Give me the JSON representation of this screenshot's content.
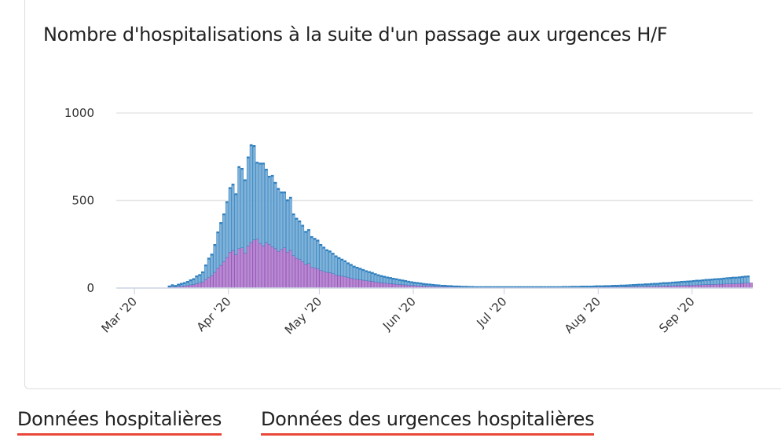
{
  "chart_data": {
    "type": "bar",
    "title": "Nombre d'hospitalisations à la suite d'un passage aux urgences H/F",
    "stacked": true,
    "grid": true,
    "legend": "none",
    "ylim": [
      0,
      1000
    ],
    "yticks": [
      0,
      500,
      1000
    ],
    "xticks": [
      "Mar '20",
      "Apr '20",
      "May '20",
      "Jun '20",
      "Jul '20",
      "Aug '20",
      "Sep '20"
    ],
    "x_start": "2020-02-24",
    "x_end": "2020-09-20",
    "colors": {
      "top": "#7fb2d8",
      "top_edge": "#2f7fbf",
      "bottom": "#b98ad3",
      "bottom_edge": "#8a47b0",
      "grid": "#e6e6e6"
    },
    "series": [
      {
        "values": [
          0,
          0,
          0,
          0,
          0,
          0,
          0,
          0,
          0,
          0,
          0,
          0,
          0,
          0,
          0,
          0,
          0,
          5,
          8,
          6,
          9,
          10,
          12,
          14,
          18,
          20,
          25,
          28,
          34,
          48,
          62,
          70,
          90,
          112,
          130,
          150,
          175,
          205,
          215,
          190,
          225,
          230,
          200,
          240,
          260,
          275,
          280,
          255,
          240,
          260,
          250,
          235,
          225,
          210,
          220,
          230,
          205,
          215,
          185,
          170,
          165,
          150,
          135,
          140,
          120,
          115,
          110,
          100,
          95,
          90,
          88,
          82,
          75,
          70,
          68,
          65,
          60,
          56,
          52,
          50,
          48,
          45,
          42,
          40,
          38,
          35,
          32,
          30,
          28,
          26,
          25,
          23,
          22,
          20,
          19,
          18,
          16,
          15,
          14,
          13,
          12,
          11,
          10,
          10,
          9,
          8,
          8,
          7,
          7,
          6,
          6,
          5,
          5,
          5,
          4,
          4,
          4,
          4,
          3,
          3,
          3,
          3,
          3,
          3,
          3,
          3,
          3,
          3,
          3,
          3,
          3,
          3,
          3,
          3,
          3,
          3,
          3,
          3,
          3,
          3,
          3,
          3,
          3,
          3,
          3,
          3,
          3,
          3,
          3,
          3,
          4,
          4,
          4,
          4,
          4,
          4,
          4,
          5,
          5,
          5,
          5,
          5,
          5,
          6,
          6,
          6,
          6,
          6,
          7,
          7,
          7,
          8,
          8,
          8,
          9,
          9,
          10,
          10,
          10,
          11,
          12,
          12,
          12,
          13,
          14,
          14,
          15,
          15,
          16,
          16,
          17,
          18,
          18,
          19,
          20,
          20,
          20,
          21,
          22,
          22,
          23,
          24,
          24,
          25,
          25,
          26,
          27,
          28,
          28,
          29,
          30,
          31
        ]
      },
      {
        "values": [
          0,
          0,
          0,
          0,
          0,
          0,
          0,
          0,
          0,
          0,
          0,
          0,
          0,
          0,
          0,
          0,
          0,
          8,
          12,
          10,
          14,
          18,
          20,
          25,
          30,
          35,
          45,
          50,
          60,
          85,
          110,
          125,
          160,
          210,
          245,
          275,
          320,
          370,
          380,
          350,
          470,
          455,
          420,
          510,
          560,
          540,
          440,
          460,
          475,
          420,
          390,
          410,
          380,
          360,
          330,
          320,
          300,
          305,
          240,
          230,
          220,
          210,
          190,
          195,
          175,
          170,
          165,
          150,
          140,
          130,
          125,
          118,
          110,
          105,
          98,
          92,
          85,
          80,
          74,
          70,
          66,
          62,
          58,
          55,
          52,
          48,
          45,
          42,
          40,
          38,
          36,
          34,
          32,
          30,
          28,
          26,
          24,
          22,
          20,
          19,
          18,
          16,
          15,
          14,
          13,
          12,
          11,
          10,
          10,
          9,
          9,
          8,
          8,
          7,
          7,
          7,
          6,
          6,
          6,
          6,
          6,
          6,
          6,
          6,
          6,
          6,
          6,
          6,
          6,
          6,
          6,
          6,
          6,
          6,
          6,
          6,
          6,
          6,
          6,
          6,
          6,
          6,
          6,
          6,
          6,
          6,
          6,
          7,
          7,
          7,
          7,
          7,
          7,
          8,
          8,
          8,
          8,
          8,
          9,
          9,
          9,
          10,
          10,
          10,
          11,
          11,
          12,
          12,
          12,
          13,
          14,
          14,
          15,
          15,
          16,
          16,
          17,
          18,
          18,
          19,
          20,
          20,
          21,
          22,
          22,
          23,
          24,
          25,
          25,
          26,
          27,
          28,
          28,
          29,
          30,
          31,
          32,
          33,
          33,
          34,
          35,
          36,
          37,
          38,
          38,
          39,
          40,
          41,
          42
        ]
      }
    ]
  },
  "links": {
    "hospital": "Données hospitalières",
    "emergency": "Données des urgences hospitalières"
  }
}
